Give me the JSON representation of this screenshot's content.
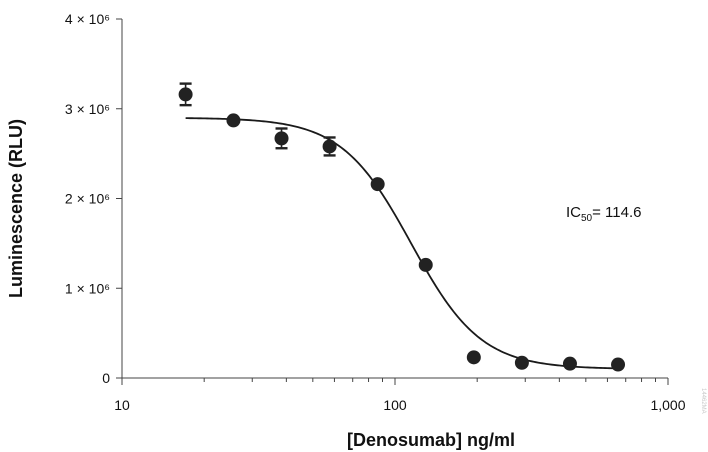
{
  "chart_data": {
    "type": "scatter",
    "title": "",
    "xlabel": "[Denosumab] ng/ml",
    "ylabel": "Luminescence (RLU)",
    "x_scale": "log",
    "xlim": [
      10,
      1000
    ],
    "ylim": [
      0,
      4000000
    ],
    "x_ticks": [
      10,
      100,
      1000
    ],
    "x_tick_labels": [
      "10",
      "100",
      "1,000"
    ],
    "y_ticks": [
      0,
      1000000,
      2000000,
      3000000,
      4000000
    ],
    "y_tick_labels": [
      "0",
      "1 × 10⁶",
      "2 × 10⁶",
      "3 × 10⁶",
      "4 × 10⁶"
    ],
    "grid": false,
    "legend": "none",
    "series": [
      {
        "x": [
          17.1,
          25.6,
          38.4,
          57.6,
          86.4,
          129.6,
          194.4,
          291.6,
          437.4,
          656.1
        ],
        "y": [
          3160000,
          2870000,
          2670000,
          2580000,
          2160000,
          1260000,
          230000,
          170000,
          160000,
          150000
        ],
        "error": [
          120000,
          0,
          110000,
          100000,
          0,
          0,
          0,
          0,
          0,
          0
        ]
      }
    ],
    "fit": {
      "model": "4PL",
      "top": 2900000,
      "bottom": 100000,
      "ic50": 114.6,
      "hill": 3.4,
      "x_range": [
        17.1,
        656.1
      ]
    },
    "annotation": {
      "prefix": "IC",
      "subscript": "50",
      "text": "= 114.6"
    },
    "side_mark": "14462MA"
  }
}
